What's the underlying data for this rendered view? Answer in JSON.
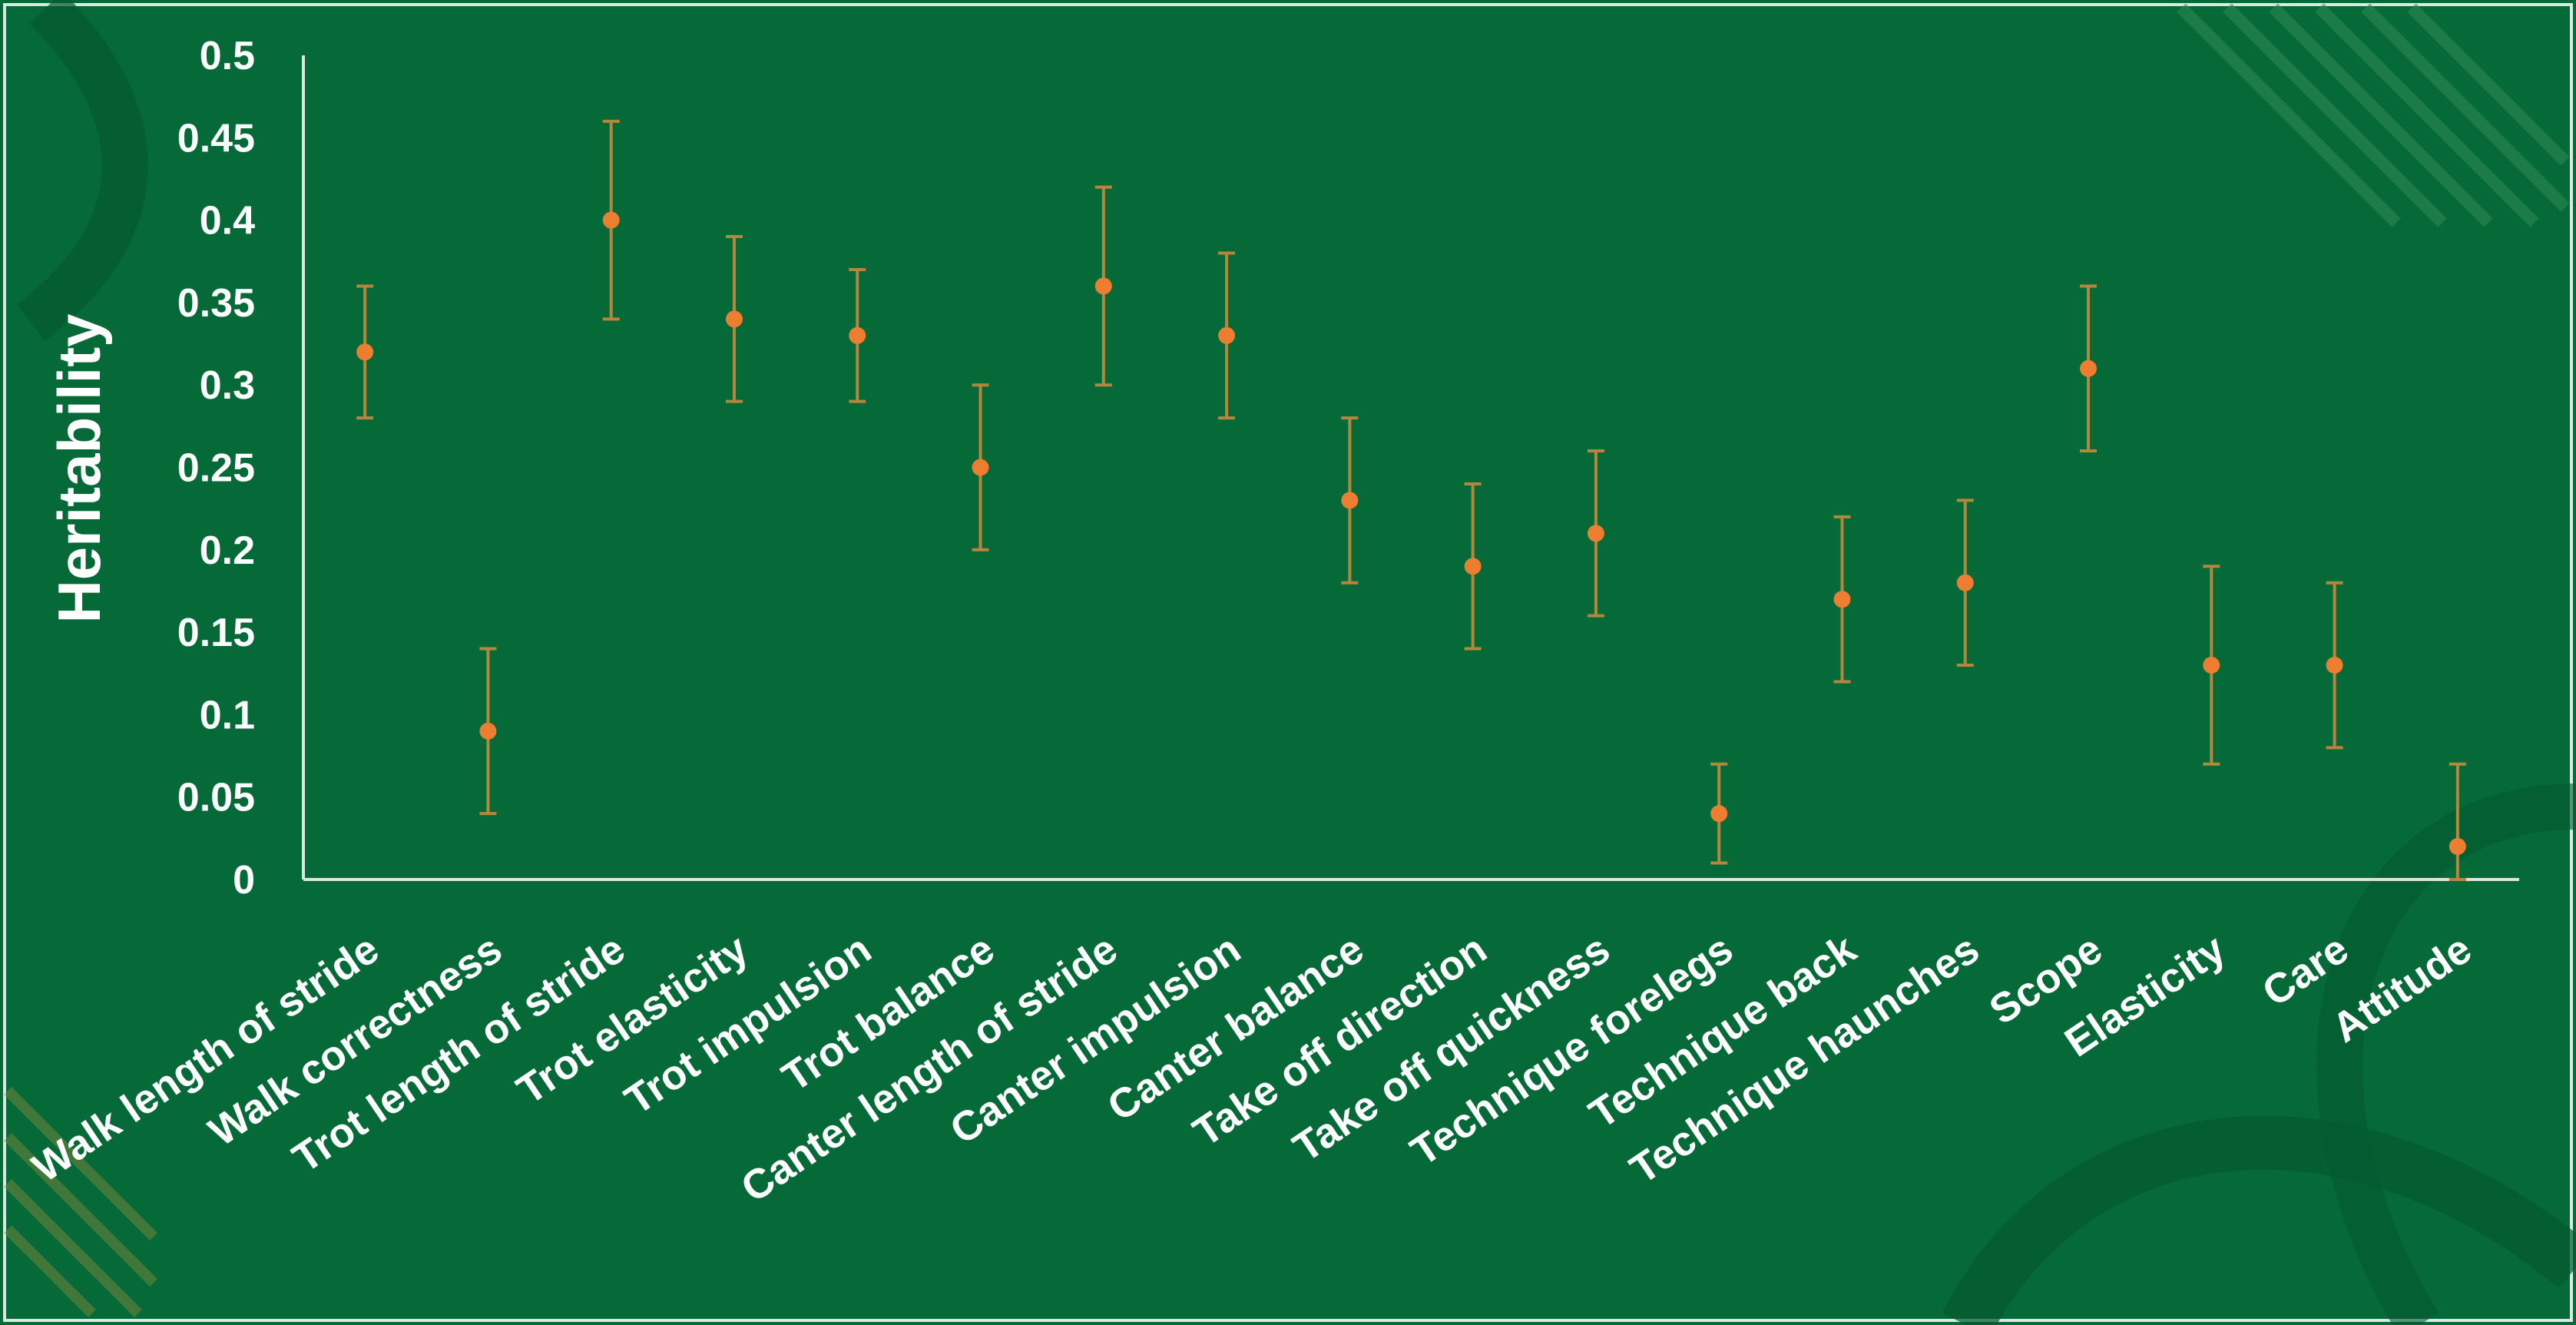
{
  "colors": {
    "background": "#056938",
    "point": "#ED7D31",
    "error_bar": "#B5873C",
    "axis": "#d9e6dd",
    "text": "#ffffff"
  },
  "chart_data": {
    "type": "scatter",
    "ylabel": "Heritability",
    "ylim": [
      0,
      0.5
    ],
    "yticks": [
      "0",
      "0.05",
      "0.1",
      "0.15",
      "0.2",
      "0.25",
      "0.3",
      "0.35",
      "0.4",
      "0.45",
      "0.5"
    ],
    "grid": false,
    "legend": "none",
    "categories": [
      "Walk length of stride",
      "Walk correctness",
      "Trot length of stride",
      "Trot elasticity",
      "Trot impulsion",
      "Trot balance",
      "Canter length of stride",
      "Canter impulsion",
      "Canter balance",
      "Take off direction",
      "Take off quickness",
      "Technique forelegs",
      "Technique back",
      "Technique haunches",
      "Scope",
      "Elasticity",
      "Care",
      "Attitude"
    ],
    "values": [
      0.32,
      0.09,
      0.4,
      0.34,
      0.33,
      0.25,
      0.36,
      0.33,
      0.23,
      0.19,
      0.21,
      0.04,
      0.17,
      0.18,
      0.31,
      0.13,
      0.13,
      0.02
    ],
    "error_low": [
      0.28,
      0.04,
      0.34,
      0.29,
      0.29,
      0.2,
      0.3,
      0.28,
      0.18,
      0.14,
      0.16,
      0.01,
      0.12,
      0.13,
      0.26,
      0.07,
      0.08,
      0.0
    ],
    "error_high": [
      0.36,
      0.14,
      0.46,
      0.39,
      0.37,
      0.3,
      0.42,
      0.38,
      0.28,
      0.24,
      0.26,
      0.07,
      0.22,
      0.23,
      0.36,
      0.19,
      0.18,
      0.07
    ]
  }
}
